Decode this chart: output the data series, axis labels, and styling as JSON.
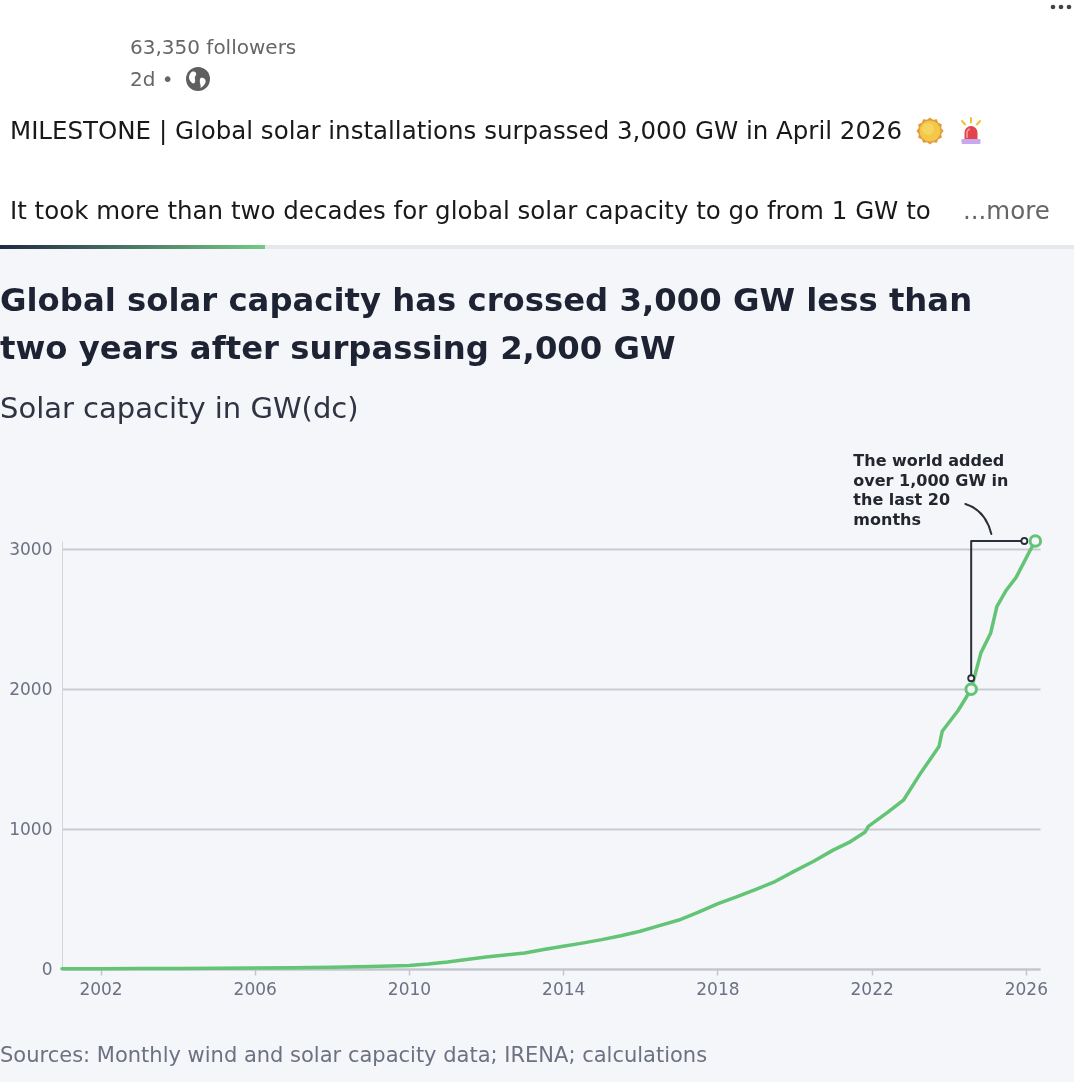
{
  "chart_data": {
    "type": "line",
    "title": "Global solar capacity has crossed 3,000 GW less than two years after surpassing 2,000 GW",
    "subtitle": "Solar capacity in GW(dc)",
    "series": [
      {
        "color": "#62c474",
        "x": [
          "2001-01",
          "2002-01",
          "2003-01",
          "2004-01",
          "2005-01",
          "2006-01",
          "2007-01",
          "2008-01",
          "2009-01",
          "2010-01",
          "2010-07",
          "2011-01",
          "2011-07",
          "2012-01",
          "2012-07",
          "2013-01",
          "2013-07",
          "2014-01",
          "2014-07",
          "2015-01",
          "2015-07",
          "2016-01",
          "2016-07",
          "2017-01",
          "2017-07",
          "2018-01",
          "2018-07",
          "2019-01",
          "2019-07",
          "2020-01",
          "2020-07",
          "2021-01",
          "2021-06",
          "2021-11",
          "2021-12",
          "2022-06",
          "2022-11",
          "2023-04",
          "2023-10",
          "2023-11",
          "2024-04",
          "2024-08",
          "2024-11",
          "2025-02",
          "2025-04",
          "2025-07",
          "2025-10",
          "2026-02",
          "2026-04"
        ],
        "values": [
          1,
          2,
          3,
          4,
          5,
          7,
          9,
          12,
          17,
          25,
          35,
          50,
          68,
          85,
          100,
          115,
          140,
          162,
          185,
          210,
          238,
          270,
          310,
          350,
          405,
          465,
          515,
          570,
          625,
          700,
          770,
          850,
          905,
          980,
          1020,
          1120,
          1210,
          1390,
          1590,
          1700,
          1850,
          2000,
          2260,
          2400,
          2590,
          2710,
          2800,
          2980,
          3060
        ]
      },
      {
        "type": "scatter",
        "color": "#62c474",
        "marker": "circle",
        "x": [
          "2024-08",
          "2026-04"
        ],
        "values": [
          2000,
          3060
        ]
      }
    ],
    "xlim": [
      "2001-01",
      "2026-05-15"
    ],
    "xticks": [
      "2002",
      "2006",
      "2010",
      "2014",
      "2018",
      "2022",
      "2026"
    ],
    "ylim": [
      0,
      3060
    ],
    "yticks": [
      0,
      1000,
      2000,
      3000
    ],
    "grid": "y",
    "annotations": [
      "63,350 followers",
      "2d •",
      "MILESTONE | Global solar installations surpassed 3,000 GW in April 2026",
      "It took more than two decades for global solar capacity to go from 1 GW to",
      "...more",
      {
        "text": "The world added over 1,000 GW in the last 20 months",
        "x": "2026-04",
        "y": 3060
      },
      "Sources: Monthly wind and solar capacity data; IRENA; calculations"
    ]
  }
}
